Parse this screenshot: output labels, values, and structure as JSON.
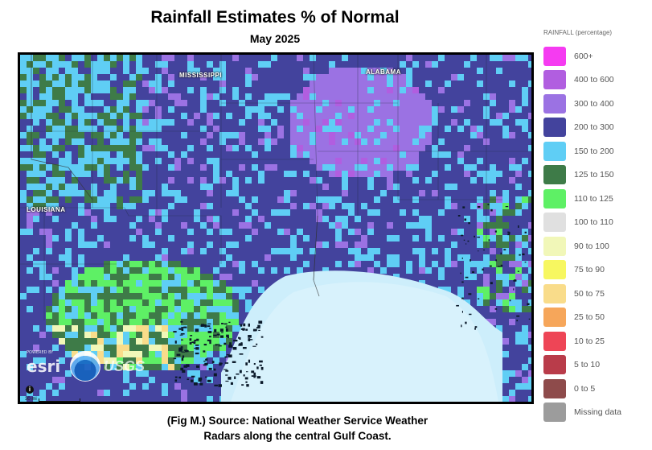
{
  "title": "Rainfall Estimates % of Normal",
  "subtitle": "May 2025",
  "caption_line1": "(Fig M.) Source: National Weather Service Weather",
  "caption_line2": "Radars along the central Gulf Coast.",
  "map": {
    "state_labels": {
      "mississippi": "MISSISSIPPI",
      "alabama": "ALABAMA",
      "louisiana": "LOUISIANA"
    },
    "logos": {
      "esri": "esri",
      "esri_small": "POWERED BY",
      "usgs": "USGS"
    },
    "scale_label": "30 mi",
    "info_icon": "i"
  },
  "legend": {
    "title": "RAINFALL (percentage)",
    "items": [
      {
        "label": "600+",
        "color": "#f53bf1"
      },
      {
        "label": "400 to 600",
        "color": "#b15ee0"
      },
      {
        "label": "300 to 400",
        "color": "#9b72e3"
      },
      {
        "label": "200 to 300",
        "color": "#43439d"
      },
      {
        "label": "150 to 200",
        "color": "#5fcef5"
      },
      {
        "label": "125 to 150",
        "color": "#3e7b48"
      },
      {
        "label": "110 to 125",
        "color": "#5ef065"
      },
      {
        "label": "100 to 110",
        "color": "#e0e0e0"
      },
      {
        "label": "90 to 100",
        "color": "#f1f7b8"
      },
      {
        "label": "75 to 90",
        "color": "#f7f760"
      },
      {
        "label": "50 to 75",
        "color": "#f9dc8a"
      },
      {
        "label": "25 to 50",
        "color": "#f6a65a"
      },
      {
        "label": "10 to 25",
        "color": "#ee4556"
      },
      {
        "label": "5 to 10",
        "color": "#b93c4a"
      },
      {
        "label": "0 to 5",
        "color": "#8e4b4b"
      },
      {
        "label": "Missing data",
        "color": "#9c9c9c"
      }
    ]
  }
}
